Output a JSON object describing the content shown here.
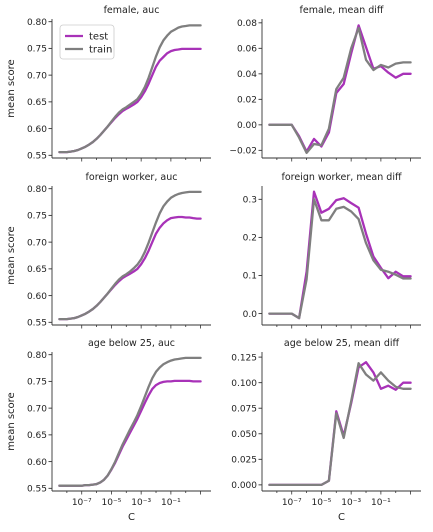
{
  "chart_data": [
    {
      "type": "line",
      "title": "female, auc",
      "xlabel": "",
      "ylabel": "mean score",
      "x_log10": [
        -8.5,
        -8.25,
        -8,
        -7.75,
        -7.5,
        -7.25,
        -7,
        -6.75,
        -6.5,
        -6.25,
        -6,
        -5.75,
        -5.5,
        -5.25,
        -5,
        -4.75,
        -4.5,
        -4.25,
        -4,
        -3.75,
        -3.5,
        -3.25,
        -3,
        -2.75,
        -2.5,
        -2.25,
        -2,
        -1.75,
        -1.5,
        -1.25,
        -1,
        -0.75,
        -0.5,
        -0.25,
        0,
        0.25,
        0.5,
        0.75,
        1
      ],
      "ylim": [
        0.545,
        0.805
      ],
      "yticks": [
        "0.55",
        "0.60",
        "0.65",
        "0.70",
        "0.75",
        "0.80"
      ],
      "ytick_values": [
        0.55,
        0.6,
        0.65,
        0.7,
        0.75,
        0.8
      ],
      "legend": {
        "entries": [
          "test",
          "train"
        ],
        "position": "upper left"
      },
      "series": [
        {
          "name": "test",
          "color": "#a832b8",
          "values": [
            0.556,
            0.556,
            0.556,
            0.557,
            0.558,
            0.56,
            0.563,
            0.566,
            0.57,
            0.575,
            0.581,
            0.588,
            0.596,
            0.604,
            0.612,
            0.62,
            0.627,
            0.633,
            0.637,
            0.641,
            0.645,
            0.65,
            0.659,
            0.67,
            0.684,
            0.7,
            0.716,
            0.727,
            0.734,
            0.741,
            0.745,
            0.747,
            0.748,
            0.749,
            0.749,
            0.749,
            0.749,
            0.749,
            0.749
          ]
        },
        {
          "name": "train",
          "color": "#7f7f7f",
          "values": [
            0.556,
            0.556,
            0.556,
            0.557,
            0.558,
            0.56,
            0.563,
            0.566,
            0.57,
            0.575,
            0.581,
            0.588,
            0.596,
            0.604,
            0.613,
            0.622,
            0.63,
            0.636,
            0.64,
            0.645,
            0.65,
            0.655,
            0.665,
            0.678,
            0.695,
            0.715,
            0.735,
            0.752,
            0.765,
            0.774,
            0.781,
            0.785,
            0.789,
            0.791,
            0.792,
            0.793,
            0.793,
            0.793,
            0.793
          ]
        }
      ]
    },
    {
      "type": "line",
      "title": "female, mean diff",
      "xlabel": "",
      "ylabel": "",
      "x_log10": [
        -8.5,
        -8,
        -7.5,
        -7,
        -6.5,
        -6,
        -5.5,
        -5,
        -4.5,
        -4,
        -3.5,
        -3,
        -2.5,
        -2,
        -1.5,
        -1,
        -0.5,
        0,
        0.5,
        1
      ],
      "ylim": [
        -0.026,
        0.083
      ],
      "yticks": [
        "−0.02",
        "0.00",
        "0.02",
        "0.04",
        "0.06",
        "0.08"
      ],
      "ytick_values": [
        -0.02,
        0.0,
        0.02,
        0.04,
        0.06,
        0.08
      ],
      "series": [
        {
          "name": "test",
          "color": "#a832b8",
          "values": [
            0.0,
            0.0,
            0.0,
            0.0,
            -0.009,
            -0.021,
            -0.011,
            -0.017,
            -0.006,
            0.025,
            0.032,
            0.056,
            0.078,
            0.061,
            0.044,
            0.046,
            0.041,
            0.037,
            0.04,
            0.04
          ]
        },
        {
          "name": "train",
          "color": "#7f7f7f",
          "values": [
            0.0,
            0.0,
            0.0,
            0.0,
            -0.01,
            -0.022,
            -0.015,
            -0.016,
            -0.003,
            0.028,
            0.037,
            0.06,
            0.076,
            0.051,
            0.043,
            0.047,
            0.045,
            0.048,
            0.049,
            0.049
          ]
        }
      ]
    },
    {
      "type": "line",
      "title": "foreign worker, auc",
      "xlabel": "",
      "ylabel": "mean score",
      "x_log10": [
        -8.5,
        -8.25,
        -8,
        -7.75,
        -7.5,
        -7.25,
        -7,
        -6.75,
        -6.5,
        -6.25,
        -6,
        -5.75,
        -5.5,
        -5.25,
        -5,
        -4.75,
        -4.5,
        -4.25,
        -4,
        -3.75,
        -3.5,
        -3.25,
        -3,
        -2.75,
        -2.5,
        -2.25,
        -2,
        -1.75,
        -1.5,
        -1.25,
        -1,
        -0.75,
        -0.5,
        -0.25,
        0,
        0.25,
        0.5,
        0.75,
        1
      ],
      "ylim": [
        0.545,
        0.805
      ],
      "yticks": [
        "0.55",
        "0.60",
        "0.65",
        "0.70",
        "0.75",
        "0.80"
      ],
      "ytick_values": [
        0.55,
        0.6,
        0.65,
        0.7,
        0.75,
        0.8
      ],
      "series": [
        {
          "name": "test",
          "color": "#a832b8",
          "values": [
            0.556,
            0.556,
            0.556,
            0.557,
            0.558,
            0.56,
            0.563,
            0.566,
            0.57,
            0.575,
            0.581,
            0.588,
            0.596,
            0.604,
            0.612,
            0.62,
            0.627,
            0.633,
            0.637,
            0.641,
            0.645,
            0.65,
            0.659,
            0.67,
            0.684,
            0.7,
            0.716,
            0.727,
            0.735,
            0.741,
            0.745,
            0.746,
            0.747,
            0.747,
            0.746,
            0.746,
            0.745,
            0.744,
            0.744
          ]
        },
        {
          "name": "train",
          "color": "#7f7f7f",
          "values": [
            0.556,
            0.556,
            0.556,
            0.557,
            0.558,
            0.56,
            0.563,
            0.566,
            0.57,
            0.575,
            0.581,
            0.588,
            0.596,
            0.604,
            0.613,
            0.622,
            0.63,
            0.636,
            0.64,
            0.645,
            0.651,
            0.658,
            0.668,
            0.682,
            0.699,
            0.718,
            0.737,
            0.754,
            0.767,
            0.776,
            0.783,
            0.787,
            0.79,
            0.792,
            0.793,
            0.794,
            0.794,
            0.794,
            0.794
          ]
        }
      ]
    },
    {
      "type": "line",
      "title": "foreign worker, mean diff",
      "xlabel": "",
      "ylabel": "",
      "x_log10": [
        -8.5,
        -8,
        -7.5,
        -7,
        -6.5,
        -6,
        -5.5,
        -5,
        -4.5,
        -4,
        -3.5,
        -3,
        -2.5,
        -2,
        -1.5,
        -1,
        -0.5,
        0,
        0.5,
        1
      ],
      "ylim": [
        -0.03,
        0.335
      ],
      "yticks": [
        "0.0",
        "0.1",
        "0.2",
        "0.3"
      ],
      "ytick_values": [
        0.0,
        0.1,
        0.2,
        0.3
      ],
      "series": [
        {
          "name": "test",
          "color": "#a832b8",
          "values": [
            0.0,
            0.0,
            0.0,
            0.0,
            -0.012,
            0.11,
            0.32,
            0.265,
            0.275,
            0.298,
            0.303,
            0.29,
            0.278,
            0.21,
            0.15,
            0.12,
            0.093,
            0.11,
            0.098,
            0.098
          ]
        },
        {
          "name": "train",
          "color": "#7f7f7f",
          "values": [
            0.0,
            0.0,
            0.0,
            0.0,
            -0.012,
            0.09,
            0.3,
            0.245,
            0.245,
            0.275,
            0.28,
            0.268,
            0.248,
            0.185,
            0.14,
            0.115,
            0.11,
            0.102,
            0.092,
            0.092
          ]
        }
      ]
    },
    {
      "type": "line",
      "title": "age below 25, auc",
      "xlabel": "C",
      "ylabel": "mean score",
      "x_log10": [
        -8.5,
        -8.25,
        -8,
        -7.75,
        -7.5,
        -7.25,
        -7,
        -6.75,
        -6.5,
        -6.25,
        -6,
        -5.75,
        -5.5,
        -5.25,
        -5,
        -4.75,
        -4.5,
        -4.25,
        -4,
        -3.75,
        -3.5,
        -3.25,
        -3,
        -2.75,
        -2.5,
        -2.25,
        -2,
        -1.75,
        -1.5,
        -1.25,
        -1,
        -0.75,
        -0.5,
        -0.25,
        0,
        0.25,
        0.5,
        0.75,
        1
      ],
      "ylim": [
        0.545,
        0.805
      ],
      "yticks": [
        "0.55",
        "0.60",
        "0.65",
        "0.70",
        "0.75",
        "0.80"
      ],
      "ytick_values": [
        0.55,
        0.6,
        0.65,
        0.7,
        0.75,
        0.8
      ],
      "xtick_labels": [
        "10⁻⁷",
        "10⁻⁵",
        "10⁻³",
        "10⁻¹"
      ],
      "xtick_values": [
        -7,
        -5,
        -3,
        -1
      ],
      "series": [
        {
          "name": "test",
          "color": "#a832b8",
          "values": [
            0.555,
            0.555,
            0.555,
            0.555,
            0.555,
            0.555,
            0.555,
            0.556,
            0.556,
            0.557,
            0.558,
            0.561,
            0.566,
            0.574,
            0.585,
            0.598,
            0.613,
            0.628,
            0.641,
            0.654,
            0.667,
            0.68,
            0.695,
            0.71,
            0.724,
            0.736,
            0.743,
            0.747,
            0.749,
            0.75,
            0.75,
            0.751,
            0.751,
            0.751,
            0.751,
            0.751,
            0.75,
            0.75,
            0.75
          ]
        },
        {
          "name": "train",
          "color": "#7f7f7f",
          "values": [
            0.555,
            0.555,
            0.555,
            0.555,
            0.555,
            0.555,
            0.555,
            0.556,
            0.556,
            0.557,
            0.558,
            0.561,
            0.566,
            0.574,
            0.586,
            0.6,
            0.616,
            0.632,
            0.646,
            0.66,
            0.673,
            0.687,
            0.704,
            0.722,
            0.74,
            0.756,
            0.768,
            0.776,
            0.782,
            0.786,
            0.789,
            0.791,
            0.792,
            0.793,
            0.794,
            0.794,
            0.794,
            0.794,
            0.794
          ]
        }
      ]
    },
    {
      "type": "line",
      "title": "age below 25, mean diff",
      "xlabel": "C",
      "ylabel": "",
      "x_log10": [
        -8.5,
        -8,
        -7.5,
        -7,
        -6.5,
        -6,
        -5.5,
        -5,
        -4.5,
        -4,
        -3.5,
        -3,
        -2.5,
        -2,
        -1.5,
        -1,
        -0.5,
        0,
        0.5,
        1
      ],
      "ylim": [
        -0.006,
        0.13
      ],
      "yticks": [
        "0.000",
        "0.025",
        "0.050",
        "0.075",
        "0.100",
        "0.125"
      ],
      "ytick_values": [
        0.0,
        0.025,
        0.05,
        0.075,
        0.1,
        0.125
      ],
      "xtick_labels": [
        "10⁻⁷",
        "10⁻⁵",
        "10⁻³",
        "10⁻¹"
      ],
      "xtick_values": [
        -7,
        -5,
        -3,
        -1
      ],
      "series": [
        {
          "name": "test",
          "color": "#a832b8",
          "values": [
            0.0,
            0.0,
            0.0,
            0.0,
            0.0,
            0.0,
            0.0,
            0.0,
            0.004,
            0.072,
            0.048,
            0.08,
            0.115,
            0.12,
            0.11,
            0.094,
            0.097,
            0.093,
            0.1,
            0.1
          ]
        },
        {
          "name": "train",
          "color": "#7f7f7f",
          "values": [
            0.0,
            0.0,
            0.0,
            0.0,
            0.0,
            0.0,
            0.0,
            0.0,
            0.004,
            0.07,
            0.046,
            0.082,
            0.119,
            0.108,
            0.102,
            0.11,
            0.102,
            0.096,
            0.094,
            0.094
          ]
        }
      ]
    }
  ]
}
